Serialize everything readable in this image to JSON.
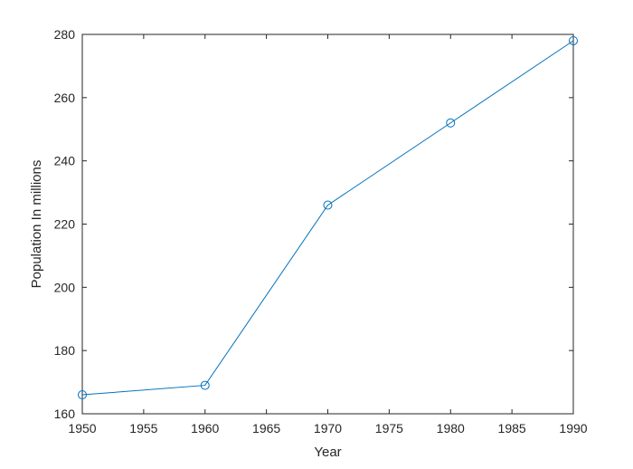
{
  "chart_data": {
    "type": "line",
    "title": "",
    "xlabel": "Year",
    "ylabel": "Population In millions",
    "xlim": [
      1950,
      1990
    ],
    "ylim": [
      160,
      280
    ],
    "xticks": [
      1950,
      1955,
      1960,
      1965,
      1970,
      1975,
      1980,
      1985,
      1990
    ],
    "yticks": [
      160,
      180,
      200,
      220,
      240,
      260,
      280
    ],
    "grid": false,
    "legend": "none",
    "series": [
      {
        "x": [
          1950,
          1960,
          1970,
          1980,
          1990
        ],
        "values": [
          166,
          169,
          226,
          252,
          278
        ],
        "color": "#0072BD",
        "marker": "circle"
      }
    ]
  }
}
